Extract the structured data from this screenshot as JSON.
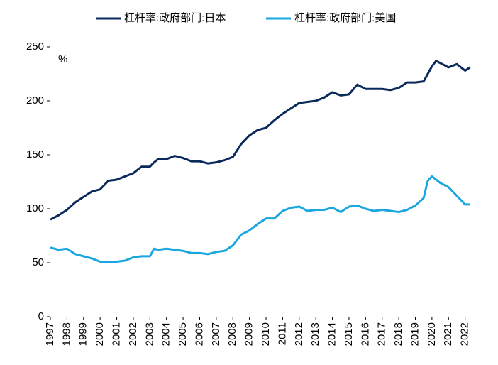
{
  "chart_data": {
    "type": "line",
    "y_unit_label": "%",
    "x": [
      1997,
      1997.5,
      1998,
      1998.5,
      1999,
      1999.5,
      2000,
      2000.5,
      2001,
      2001.5,
      2002,
      2002.5,
      2003,
      2003.25,
      2003.5,
      2004,
      2004.5,
      2005,
      2005.5,
      2006,
      2006.5,
      2007,
      2007.5,
      2008,
      2008.5,
      2009,
      2009.5,
      2010,
      2010.5,
      2011,
      2011.5,
      2012,
      2012.5,
      2013,
      2013.5,
      2014,
      2014.5,
      2015,
      2015.5,
      2016,
      2016.5,
      2017,
      2017.5,
      2018,
      2018.5,
      2019,
      2019.5,
      2019.75,
      2020,
      2020.25,
      2020.5,
      2021,
      2021.5,
      2022,
      2022.3
    ],
    "series": [
      {
        "name": "杠杆率:政府部门:日本",
        "color": "#0b2a5c",
        "values": [
          90,
          94,
          99,
          106,
          111,
          116,
          118,
          126,
          127,
          130,
          133,
          139,
          139,
          143,
          146,
          146,
          149,
          147,
          144,
          144,
          142,
          143,
          145,
          148,
          160,
          168,
          173,
          175,
          182,
          188,
          193,
          198,
          199,
          200,
          203,
          208,
          205,
          206,
          215,
          211,
          211,
          211,
          210,
          212,
          217,
          217,
          218,
          225,
          232,
          237,
          235,
          231,
          234,
          228,
          231
        ]
      },
      {
        "name": "杠杆率:政府部门:美国",
        "color": "#1aa7e0",
        "values": [
          64,
          62,
          63,
          58,
          56,
          54,
          51,
          51,
          51,
          52,
          55,
          56,
          56,
          63,
          62,
          63,
          62,
          61,
          59,
          59,
          58,
          60,
          61,
          66,
          76,
          80,
          86,
          91,
          91,
          98,
          101,
          102,
          98,
          99,
          99,
          101,
          97,
          102,
          103,
          100,
          98,
          99,
          98,
          97,
          99,
          103,
          110,
          126,
          130,
          127,
          124,
          120,
          112,
          104,
          104
        ]
      }
    ],
    "xlim": [
      1997,
      2022.4
    ],
    "xticks": [
      1997,
      1998,
      1999,
      2000,
      2001,
      2002,
      2003,
      2004,
      2005,
      2006,
      2007,
      2008,
      2009,
      2010,
      2011,
      2012,
      2013,
      2014,
      2015,
      2016,
      2017,
      2018,
      2019,
      2020,
      2021,
      2022
    ],
    "ylim": [
      0,
      250
    ],
    "yticks": [
      0,
      50,
      100,
      150,
      200,
      250
    ],
    "grid": false,
    "legend": "top"
  }
}
